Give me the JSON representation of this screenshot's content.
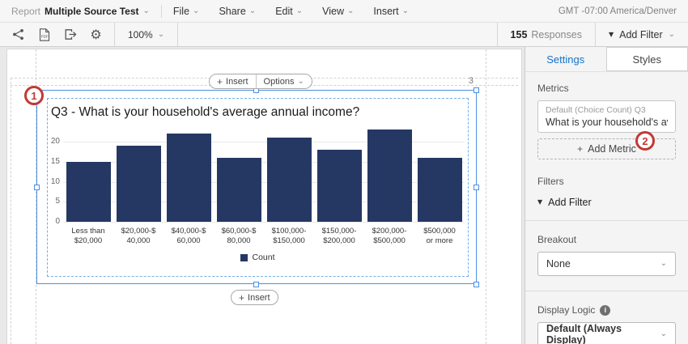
{
  "colors": {
    "accent_blue": "#1673c9",
    "selection_blue": "#4a90e2",
    "annotation_red": "#c23934",
    "bar_navy": "#253864"
  },
  "menubar": {
    "report_label": "Report",
    "report_name": "Multiple Source Test",
    "menus": [
      "File",
      "Share",
      "Edit",
      "View",
      "Insert"
    ],
    "timezone": "GMT -07:00 America/Denver"
  },
  "toolbar": {
    "icon_names": [
      "share-icon",
      "pdf-export-icon",
      "sign-out-icon",
      "gear-icon"
    ],
    "zoom_level": "100%",
    "responses_count": "155",
    "responses_label": "Responses",
    "filter_label": "Add Filter"
  },
  "canvas": {
    "insert_pill_label": "Insert",
    "options_pill_label": "Options",
    "bottom_insert_label": "Insert",
    "page_indicator": "3",
    "annotation_1": "1",
    "annotation_2": "2"
  },
  "chart_data": {
    "type": "bar",
    "title": "Q3 - What is your household's average annual income?",
    "categories": [
      "Less than\n$20,000",
      "$20,000-$\n40,000",
      "$40,000-$\n60,000",
      "$60,000-$\n80,000",
      "$100,000-\n$150,000",
      "$150,000-\n$200,000",
      "$200,000-\n$500,000",
      "$500,000\nor more"
    ],
    "values": [
      15,
      19,
      22,
      16,
      21,
      18,
      23,
      16
    ],
    "yticks": [
      0,
      5,
      10,
      15,
      20
    ],
    "ylim": [
      0,
      24
    ],
    "xlabel": "",
    "ylabel": "",
    "legend_label": "Count",
    "legend_position": "bottom",
    "grid": true,
    "bar_color": "#253864"
  },
  "sidebar": {
    "tabs": {
      "settings": "Settings",
      "styles": "Styles"
    },
    "metrics": {
      "label": "Metrics",
      "metric_meta": "Default (Choice Count) Q3",
      "metric_title": "What is your household's averag…",
      "add_metric": "Add Metric"
    },
    "filters": {
      "label": "Filters",
      "add_filter": "Add Filter"
    },
    "breakout": {
      "label": "Breakout",
      "value": "None"
    },
    "display_logic": {
      "label": "Display Logic",
      "value": "Default (Always Display)"
    }
  },
  "glyphs": {
    "chevron": "⌄",
    "triangle": "▼",
    "plus": "+",
    "gear": "⚙",
    "info": "i"
  }
}
